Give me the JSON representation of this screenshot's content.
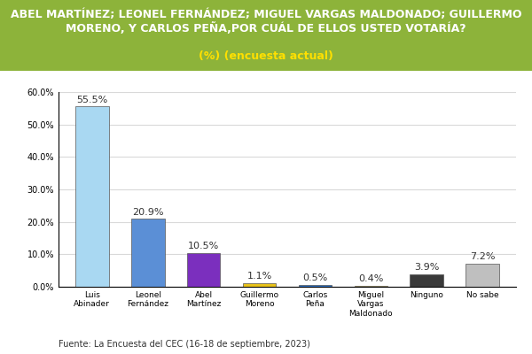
{
  "chart_data": {
    "type": "bar",
    "title": "ABEL MARTÍNEZ; LEONEL FERNÁNDEZ; MIGUEL VARGAS MALDONADO; GUILLERMO MORENO, Y CARLOS PEÑA,POR CUÁL DE ELLOS USTED VOTARÍA?",
    "subtitle": "(%) (encuesta actual)",
    "source": "Fuente: La Encuesta del CEC (16-18 de septiembre, 2023)",
    "categories": [
      "Luis Abinader",
      "Leonel Fernández",
      "Abel Martínez",
      "Guillermo Moreno",
      "Carlos Peña",
      "Miguel Vargas Maldonado",
      "Ninguno",
      "No sabe"
    ],
    "values": [
      55.5,
      20.9,
      10.5,
      1.1,
      0.5,
      0.4,
      3.9,
      7.2
    ],
    "value_labels": [
      "55.5%",
      "20.9%",
      "10.5%",
      "1.1%",
      "0.5%",
      "0.4%",
      "3.9%",
      "7.2%"
    ],
    "colors": [
      "#a9d8f2",
      "#5b8fd6",
      "#7b2fbe",
      "#e8c21a",
      "#2e6fc0",
      "#e8c21a",
      "#3a3a3a",
      "#bfbfbf"
    ],
    "ylim": [
      0,
      60
    ],
    "yticks": [
      {
        "value": 0,
        "label": "0.0%"
      },
      {
        "value": 10,
        "label": "10.0%"
      },
      {
        "value": 20,
        "label": "20.0%"
      },
      {
        "value": 30,
        "label": "30.0%"
      },
      {
        "value": 40,
        "label": "40.0%"
      },
      {
        "value": 50,
        "label": "50.0%"
      },
      {
        "value": 60,
        "label": "60.0%"
      }
    ],
    "grid": true,
    "data_labels": true
  }
}
